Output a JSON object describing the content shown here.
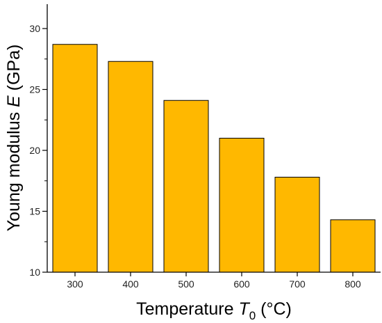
{
  "chart_data": {
    "type": "bar",
    "categories": [
      "300",
      "400",
      "500",
      "600",
      "700",
      "800"
    ],
    "values": [
      28.7,
      27.3,
      24.1,
      21.0,
      17.8,
      14.3
    ],
    "ylim": [
      10,
      32
    ],
    "yticks": [
      10,
      15,
      20,
      25,
      30
    ],
    "grid": false,
    "bar_color": "#FFB800",
    "bar_edge_color": "#000000",
    "xlabel": {
      "prefix": "Temperature ",
      "symbol": "T",
      "subscript": "0",
      "suffix": " (°C)"
    },
    "ylabel": {
      "prefix": "Young modulus ",
      "symbol": "E",
      "suffix": " (GPa)"
    }
  }
}
